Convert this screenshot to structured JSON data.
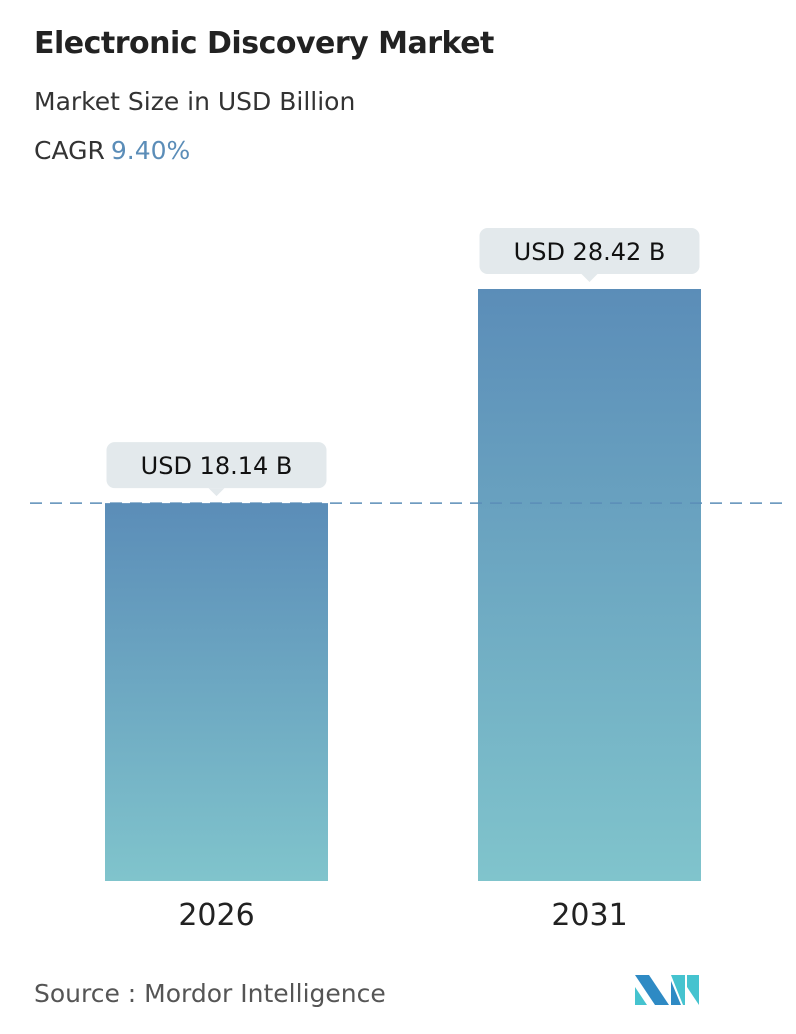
{
  "header": {
    "title": "Electronic Discovery Market",
    "subtitle": "Market Size in USD Billion",
    "cagr_label": "CAGR",
    "cagr_value": "9.40%"
  },
  "colors": {
    "bar_top": "#5b8db8",
    "bar_bottom": "#80c4cc",
    "accent": "#5b8db8",
    "label_bg": "#e3e9ec"
  },
  "chart_data": {
    "type": "bar",
    "categories": [
      "2026",
      "2031"
    ],
    "values": [
      18.14,
      28.42
    ],
    "data_labels": [
      "USD 18.14 B",
      "USD 28.42 B"
    ],
    "ylabel": "Market Size in USD Billion",
    "ylim": [
      0,
      28.42
    ],
    "reference_line": {
      "value": 18.14,
      "style": "dashed"
    },
    "grid": false
  },
  "footer": {
    "source": "Source :  Mordor Intelligence",
    "logo_text": "MI"
  }
}
